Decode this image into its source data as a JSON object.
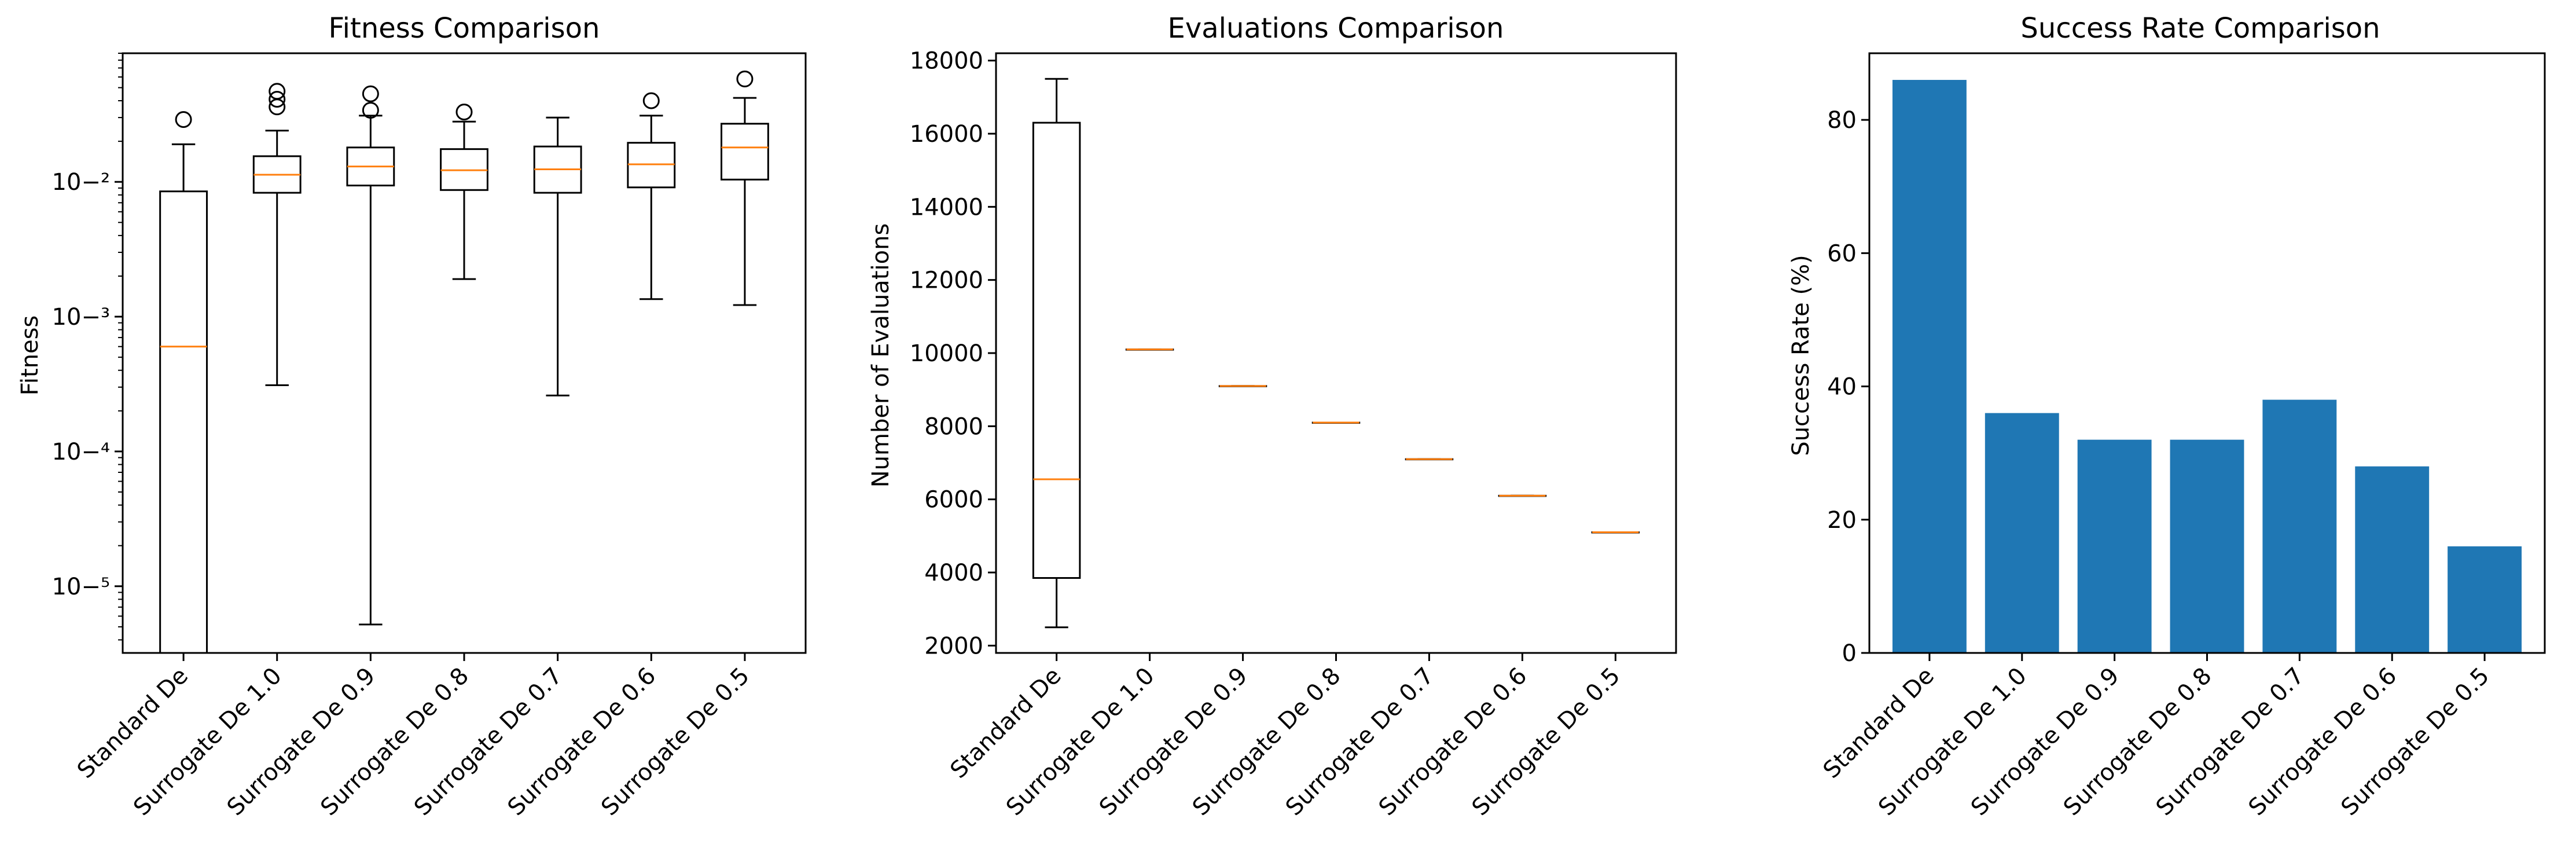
{
  "chart_data": [
    {
      "type": "box",
      "title": "Fitness Comparison",
      "xlabel": "",
      "ylabel": "Fitness",
      "yscale": "log",
      "ylim": [
        3.2e-06,
        0.09
      ],
      "yticks": [
        1e-05,
        0.0001,
        0.001,
        0.01
      ],
      "categories": [
        "Standard De",
        "Surrogate De 1.0",
        "Surrogate De 0.9",
        "Surrogate De 0.8",
        "Surrogate De 0.7",
        "Surrogate De 0.6",
        "Surrogate De 0.5"
      ],
      "boxes": [
        {
          "whislo": 3e-06,
          "q1": 3e-06,
          "med": 0.0006,
          "q3": 0.0085,
          "whishi": 0.019,
          "fliers": [
            0.029
          ]
        },
        {
          "whislo": 0.00031,
          "q1": 0.0083,
          "med": 0.0113,
          "q3": 0.0155,
          "whishi": 0.024,
          "fliers": [
            0.036,
            0.041,
            0.047
          ]
        },
        {
          "whislo": 5.2e-06,
          "q1": 0.0094,
          "med": 0.013,
          "q3": 0.018,
          "whishi": 0.031,
          "fliers": [
            0.034,
            0.045
          ]
        },
        {
          "whislo": 0.0019,
          "q1": 0.0087,
          "med": 0.0122,
          "q3": 0.0175,
          "whishi": 0.028,
          "fliers": [
            0.033
          ]
        },
        {
          "whislo": 0.00026,
          "q1": 0.0083,
          "med": 0.0124,
          "q3": 0.0183,
          "whishi": 0.03,
          "fliers": []
        },
        {
          "whislo": 0.00135,
          "q1": 0.0091,
          "med": 0.0135,
          "q3": 0.0195,
          "whishi": 0.031,
          "fliers": [
            0.04
          ]
        },
        {
          "whislo": 0.00122,
          "q1": 0.0104,
          "med": 0.018,
          "q3": 0.027,
          "whishi": 0.042,
          "fliers": [
            0.058
          ]
        }
      ],
      "colors": {
        "box": "#000000",
        "median": "#ff7f0e"
      }
    },
    {
      "type": "box",
      "title": "Evaluations Comparison",
      "xlabel": "",
      "ylabel": "Number of Evaluations",
      "yscale": "linear",
      "ylim": [
        1800,
        18200
      ],
      "yticks": [
        2000,
        4000,
        6000,
        8000,
        10000,
        12000,
        14000,
        16000,
        18000
      ],
      "categories": [
        "Standard De",
        "Surrogate De 1.0",
        "Surrogate De 0.9",
        "Surrogate De 0.8",
        "Surrogate De 0.7",
        "Surrogate De 0.6",
        "Surrogate De 0.5"
      ],
      "boxes": [
        {
          "whislo": 2500,
          "q1": 3850,
          "med": 6550,
          "q3": 16300,
          "whishi": 17500,
          "fliers": []
        },
        {
          "whislo": 10100,
          "q1": 10100,
          "med": 10100,
          "q3": 10100,
          "whishi": 10100,
          "fliers": []
        },
        {
          "whislo": 9100,
          "q1": 9100,
          "med": 9100,
          "q3": 9100,
          "whishi": 9100,
          "fliers": []
        },
        {
          "whislo": 8100,
          "q1": 8100,
          "med": 8100,
          "q3": 8100,
          "whishi": 8100,
          "fliers": []
        },
        {
          "whislo": 7100,
          "q1": 7100,
          "med": 7100,
          "q3": 7100,
          "whishi": 7100,
          "fliers": []
        },
        {
          "whislo": 6100,
          "q1": 6100,
          "med": 6100,
          "q3": 6100,
          "whishi": 6100,
          "fliers": []
        },
        {
          "whislo": 5100,
          "q1": 5100,
          "med": 5100,
          "q3": 5100,
          "whishi": 5100,
          "fliers": []
        }
      ],
      "colors": {
        "box": "#000000",
        "median": "#ff7f0e"
      }
    },
    {
      "type": "bar",
      "title": "Success Rate Comparison",
      "xlabel": "",
      "ylabel": "Success Rate (%)",
      "yscale": "linear",
      "ylim": [
        0,
        90
      ],
      "yticks": [
        0,
        20,
        40,
        60,
        80
      ],
      "categories": [
        "Standard De",
        "Surrogate De 1.0",
        "Surrogate De 0.9",
        "Surrogate De 0.8",
        "Surrogate De 0.7",
        "Surrogate De 0.6",
        "Surrogate De 0.5"
      ],
      "values": [
        86,
        36,
        32,
        32,
        38,
        28,
        16
      ],
      "colors": {
        "bar": "#1f77b4"
      }
    }
  ]
}
